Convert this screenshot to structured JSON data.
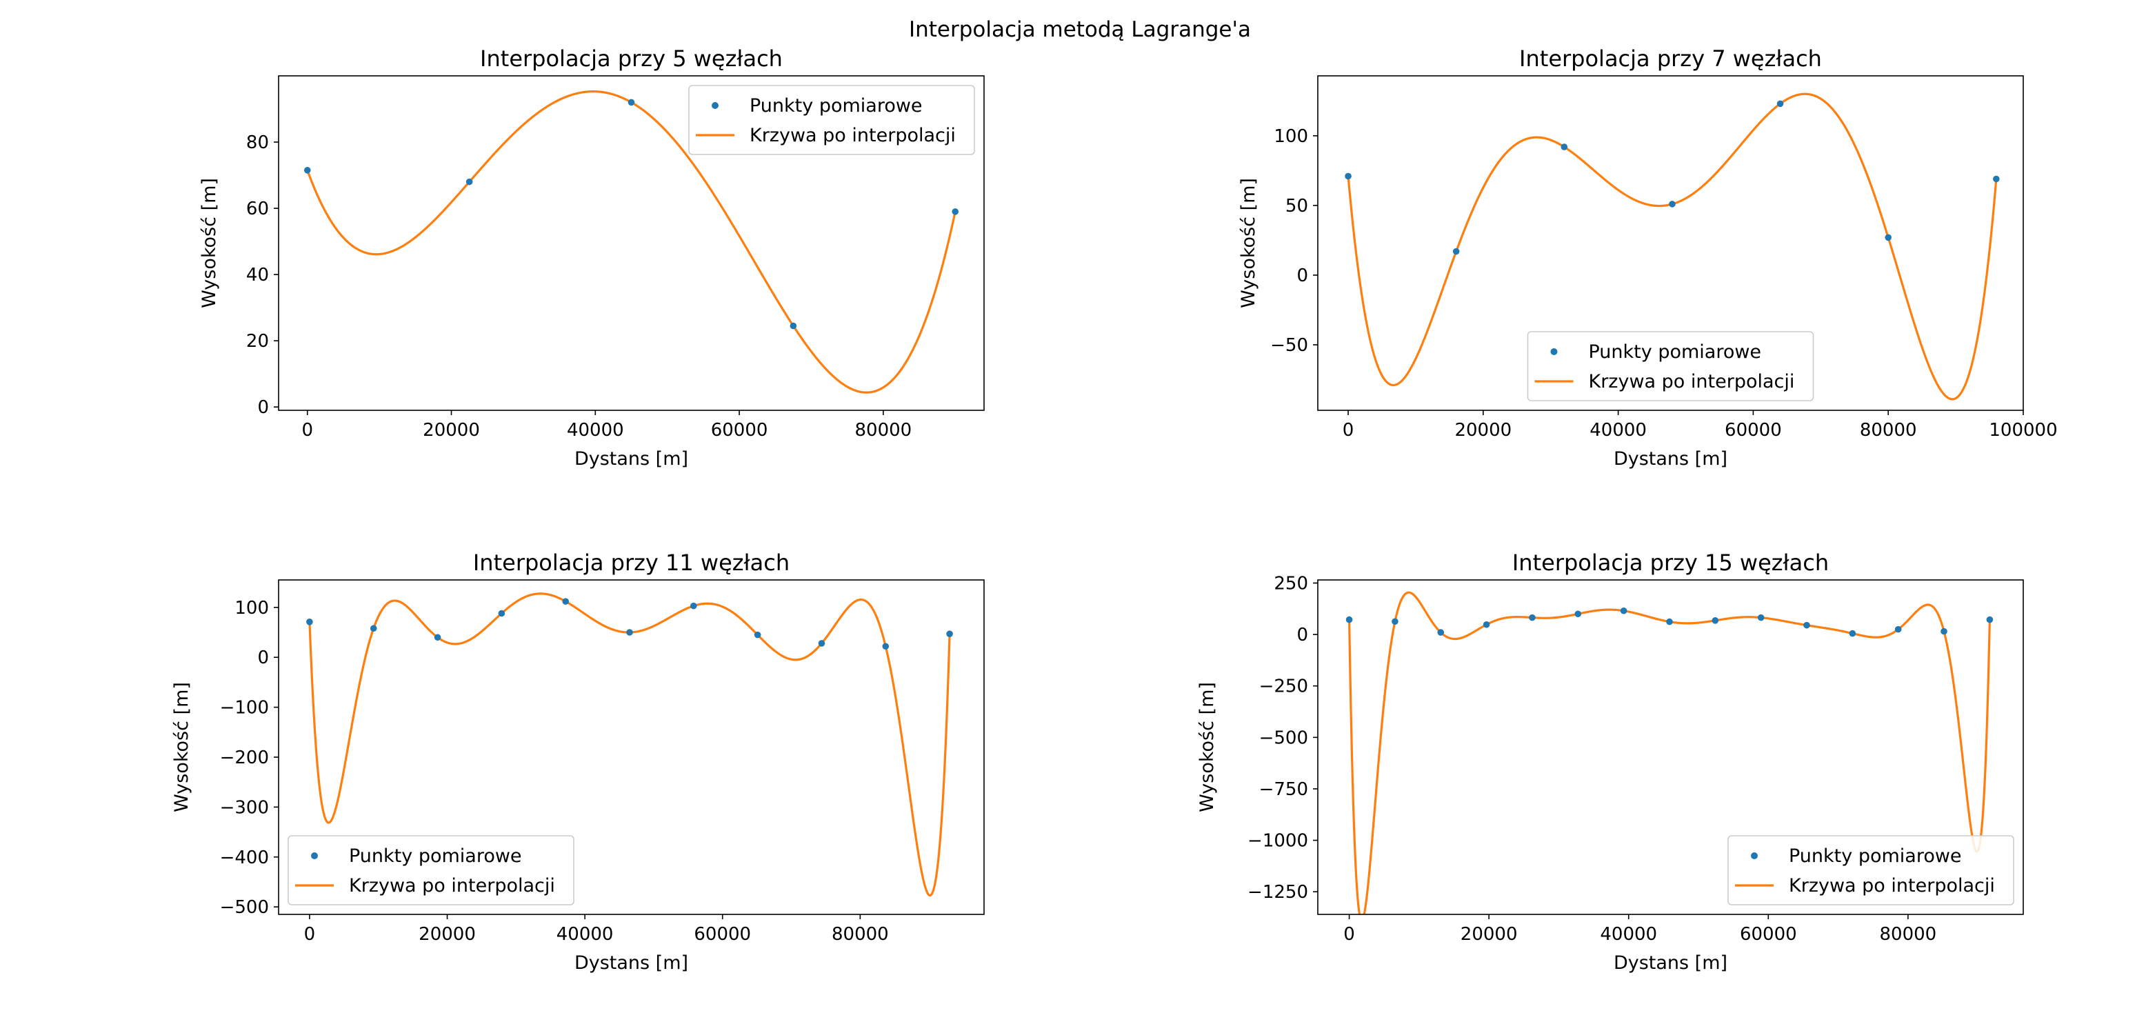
{
  "figure": {
    "suptitle": "Interpolacja metodą Lagrange'a"
  },
  "colors": {
    "points": "#1f77b4",
    "curve": "#ff7f0e"
  },
  "chart_data": [
    {
      "type": "line",
      "title": "Interpolacja przy 5 węzłach",
      "xlabel": "Dystans [m]",
      "ylabel": "Wysokość [m]",
      "xlim": [
        -4000,
        94000
      ],
      "ylim": [
        -1,
        100
      ],
      "xticks": [
        0,
        20000,
        40000,
        60000,
        80000
      ],
      "xtick_labels": [
        "0",
        "20000",
        "40000",
        "60000",
        "80000"
      ],
      "yticks": [
        0,
        20,
        40,
        60,
        80
      ],
      "ytick_labels": [
        "0",
        "20",
        "40",
        "60",
        "80"
      ],
      "legend": {
        "placement": "upper right",
        "entries": [
          "Punkty pomiarowe",
          "Krzywa po interpolacji"
        ]
      },
      "series": [
        {
          "name": "Punkty pomiarowe",
          "kind": "scatter",
          "x": [
            0,
            22500,
            45000,
            67500,
            90000
          ],
          "y": [
            71.5,
            68,
            92,
            24.5,
            59
          ]
        }
      ]
    },
    {
      "type": "line",
      "title": "Interpolacja przy 7 węzłach",
      "xlabel": "Dystans [m]",
      "ylabel": "Wysokość [m]",
      "xlim": [
        -4500,
        100000
      ],
      "ylim": [
        -97,
        143
      ],
      "xticks": [
        0,
        20000,
        40000,
        60000,
        80000,
        100000
      ],
      "xtick_labels": [
        "0",
        "20000",
        "40000",
        "60000",
        "80000",
        "100000"
      ],
      "yticks": [
        -50,
        0,
        50,
        100
      ],
      "ytick_labels": [
        "−50",
        "0",
        "50",
        "100"
      ],
      "legend": {
        "placement": "lower center",
        "entries": [
          "Punkty pomiarowe",
          "Krzywa po interpolacji"
        ]
      },
      "series": [
        {
          "name": "Punkty pomiarowe",
          "kind": "scatter",
          "x": [
            0,
            16000,
            32000,
            48000,
            64000,
            80000,
            96000
          ],
          "y": [
            71,
            17,
            92,
            51,
            123,
            27,
            69
          ]
        }
      ]
    },
    {
      "type": "line",
      "title": "Interpolacja przy 11 węzłach",
      "xlabel": "Dystans [m]",
      "ylabel": "Wysokość [m]",
      "xlim": [
        -4500,
        98000
      ],
      "ylim": [
        -515,
        155
      ],
      "xticks": [
        0,
        20000,
        40000,
        60000,
        80000
      ],
      "xtick_labels": [
        "0",
        "20000",
        "40000",
        "60000",
        "80000"
      ],
      "yticks": [
        -500,
        -400,
        -300,
        -200,
        -100,
        0,
        100
      ],
      "ytick_labels": [
        "−500",
        "−400",
        "−300",
        "−200",
        "−100",
        "0",
        "100"
      ],
      "legend": {
        "placement": "lower left",
        "entries": [
          "Punkty pomiarowe",
          "Krzywa po interpolacji"
        ]
      },
      "series": [
        {
          "name": "Punkty pomiarowe",
          "kind": "scatter",
          "x": [
            0,
            9300,
            18600,
            27900,
            37200,
            46500,
            55800,
            65100,
            74400,
            83700,
            93000
          ],
          "y": [
            71,
            58,
            40,
            88,
            112,
            50,
            103,
            45,
            28,
            22,
            47
          ]
        }
      ]
    },
    {
      "type": "line",
      "title": "Interpolacja przy 15 węzłach",
      "xlabel": "Dystans [m]",
      "ylabel": "Wysokość [m]",
      "xlim": [
        -4500,
        96500
      ],
      "ylim": [
        -1360,
        265
      ],
      "xticks": [
        0,
        20000,
        40000,
        60000,
        80000
      ],
      "xtick_labels": [
        "0",
        "20000",
        "40000",
        "60000",
        "80000"
      ],
      "yticks": [
        -1250,
        -1000,
        -750,
        -500,
        -250,
        0,
        250
      ],
      "ytick_labels": [
        "−1250",
        "−1000",
        "−750",
        "−500",
        "−250",
        "0",
        "250"
      ],
      "legend": {
        "placement": "lower right",
        "entries": [
          "Punkty pomiarowe",
          "Krzywa po interpolacji"
        ]
      },
      "series": [
        {
          "name": "Punkty pomiarowe",
          "kind": "scatter",
          "x": [
            0,
            6550,
            13100,
            19650,
            26200,
            32750,
            39300,
            45850,
            52400,
            58950,
            65500,
            72050,
            78600,
            85150,
            91700
          ],
          "y": [
            72,
            63,
            10,
            48,
            82,
            100,
            115,
            62,
            68,
            82,
            45,
            5,
            25,
            15,
            72
          ]
        }
      ]
    }
  ]
}
